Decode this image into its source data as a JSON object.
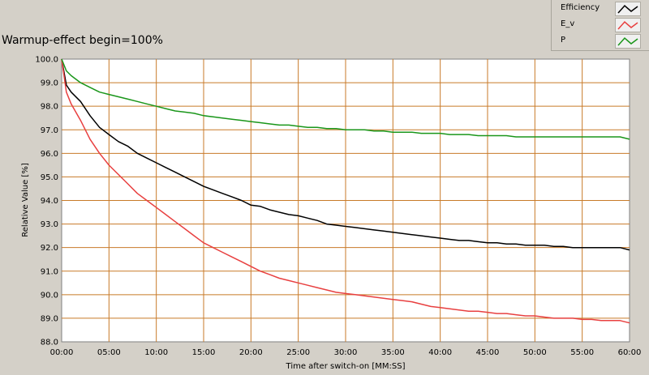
{
  "chart_data": {
    "type": "line",
    "title": "Warmup-effect begin=100%",
    "xlabel": "Time after switch-on [MM:SS]",
    "ylabel": "Relative Value [%]",
    "xlim": [
      0,
      60
    ],
    "ylim": [
      88.0,
      100.0
    ],
    "x_tick_labels": [
      "00:00",
      "05:00",
      "10:00",
      "15:00",
      "20:00",
      "25:00",
      "30:00",
      "35:00",
      "40:00",
      "45:00",
      "50:00",
      "55:00",
      "60:00"
    ],
    "y_tick_labels": [
      "100.0",
      "99.0",
      "98.0",
      "97.0",
      "96.0",
      "95.0",
      "94.0",
      "93.0",
      "92.0",
      "91.0",
      "90.0",
      "89.0",
      "88.0"
    ],
    "grid": true,
    "legend_position": "top-right",
    "series": [
      {
        "name": "Efficiency",
        "color": "#000000",
        "x": [
          0,
          0.5,
          1,
          2,
          3,
          4,
          5,
          6,
          7,
          8,
          9,
          10,
          11,
          12,
          13,
          14,
          15,
          16,
          17,
          18,
          19,
          20,
          21,
          22,
          23,
          24,
          25,
          26,
          27,
          28,
          29,
          30,
          31,
          32,
          33,
          34,
          35,
          36,
          37,
          38,
          39,
          40,
          41,
          42,
          43,
          44,
          45,
          46,
          47,
          48,
          49,
          50,
          51,
          52,
          53,
          54,
          55,
          56,
          57,
          58,
          59,
          60
        ],
        "values": [
          100.0,
          98.9,
          98.6,
          98.2,
          97.6,
          97.1,
          96.8,
          96.5,
          96.3,
          96.0,
          95.8,
          95.6,
          95.4,
          95.2,
          95.0,
          94.8,
          94.6,
          94.45,
          94.3,
          94.15,
          94.0,
          93.8,
          93.75,
          93.6,
          93.5,
          93.4,
          93.35,
          93.25,
          93.15,
          93.0,
          92.95,
          92.9,
          92.85,
          92.8,
          92.75,
          92.7,
          92.65,
          92.6,
          92.55,
          92.5,
          92.45,
          92.4,
          92.35,
          92.3,
          92.3,
          92.25,
          92.2,
          92.2,
          92.15,
          92.15,
          92.1,
          92.1,
          92.1,
          92.05,
          92.05,
          92.0,
          92.0,
          92.0,
          92.0,
          92.0,
          92.0,
          91.9
        ]
      },
      {
        "name": "E_v",
        "color": "#e84040",
        "x": [
          0,
          0.5,
          1,
          2,
          3,
          4,
          5,
          6,
          7,
          8,
          9,
          10,
          11,
          12,
          13,
          14,
          15,
          16,
          17,
          18,
          19,
          20,
          21,
          22,
          23,
          24,
          25,
          26,
          27,
          28,
          29,
          30,
          31,
          32,
          33,
          34,
          35,
          36,
          37,
          38,
          39,
          40,
          41,
          42,
          43,
          44,
          45,
          46,
          47,
          48,
          49,
          50,
          51,
          52,
          53,
          54,
          55,
          56,
          57,
          58,
          59,
          60
        ],
        "values": [
          100.0,
          98.6,
          98.1,
          97.4,
          96.6,
          96.0,
          95.5,
          95.1,
          94.7,
          94.3,
          94.0,
          93.7,
          93.4,
          93.1,
          92.8,
          92.5,
          92.2,
          92.0,
          91.8,
          91.6,
          91.4,
          91.2,
          91.0,
          90.85,
          90.7,
          90.6,
          90.5,
          90.4,
          90.3,
          90.2,
          90.1,
          90.05,
          90.0,
          89.95,
          89.9,
          89.85,
          89.8,
          89.75,
          89.7,
          89.6,
          89.5,
          89.45,
          89.4,
          89.35,
          89.3,
          89.3,
          89.25,
          89.2,
          89.2,
          89.15,
          89.1,
          89.1,
          89.05,
          89.0,
          89.0,
          89.0,
          88.95,
          88.95,
          88.9,
          88.9,
          88.9,
          88.8
        ]
      },
      {
        "name": "P",
        "color": "#1a961a",
        "x": [
          0,
          0.5,
          1,
          2,
          3,
          4,
          5,
          6,
          7,
          8,
          9,
          10,
          11,
          12,
          13,
          14,
          15,
          16,
          17,
          18,
          19,
          20,
          21,
          22,
          23,
          24,
          25,
          26,
          27,
          28,
          29,
          30,
          31,
          32,
          33,
          34,
          35,
          36,
          37,
          38,
          39,
          40,
          41,
          42,
          43,
          44,
          45,
          46,
          47,
          48,
          49,
          50,
          51,
          52,
          53,
          54,
          55,
          56,
          57,
          58,
          59,
          60
        ],
        "values": [
          100.0,
          99.5,
          99.3,
          99.0,
          98.8,
          98.6,
          98.5,
          98.4,
          98.3,
          98.2,
          98.1,
          98.0,
          97.9,
          97.8,
          97.75,
          97.7,
          97.6,
          97.55,
          97.5,
          97.45,
          97.4,
          97.35,
          97.3,
          97.25,
          97.2,
          97.2,
          97.15,
          97.1,
          97.1,
          97.05,
          97.05,
          97.0,
          97.0,
          97.0,
          96.95,
          96.95,
          96.9,
          96.9,
          96.9,
          96.85,
          96.85,
          96.85,
          96.8,
          96.8,
          96.8,
          96.75,
          96.75,
          96.75,
          96.75,
          96.7,
          96.7,
          96.7,
          96.7,
          96.7,
          96.7,
          96.7,
          96.7,
          96.7,
          96.7,
          96.7,
          96.7,
          96.6
        ]
      }
    ]
  }
}
